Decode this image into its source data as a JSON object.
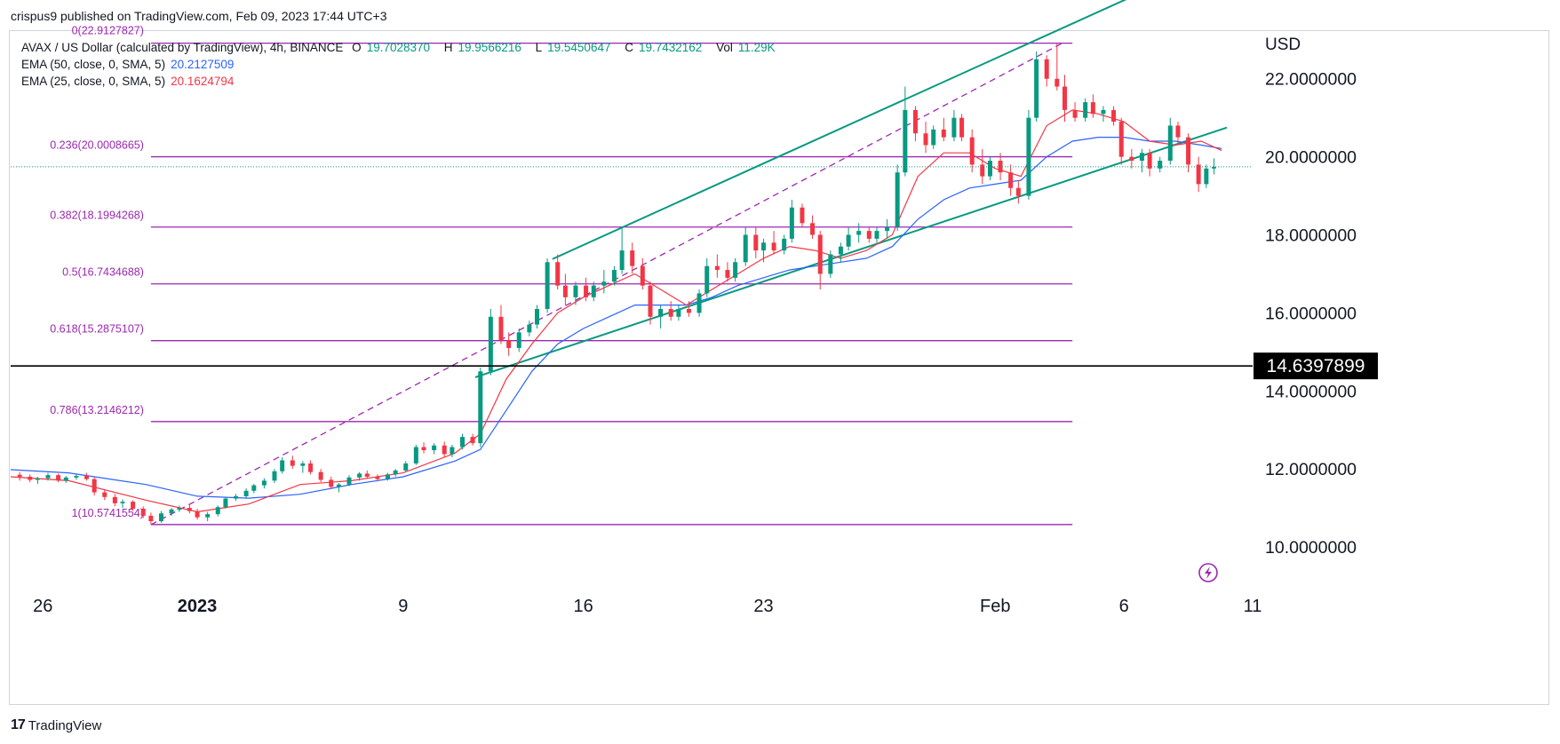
{
  "header": {
    "publisher": "crispus9 published on TradingView.com, Feb 09, 2023 17:44 UTC+3"
  },
  "legend": {
    "symbol": "AVAX / US Dollar (calculated by TradingView), 4h, BINANCE",
    "o_label": "O",
    "o_value": "19.7028370",
    "h_label": "H",
    "h_value": "19.9566216",
    "l_label": "L",
    "l_value": "19.5450647",
    "c_label": "C",
    "c_value": "19.7432162",
    "vol_label": "Vol",
    "vol_value": "11.29K",
    "ema50_label": "EMA (50, close, 0, SMA, 5)",
    "ema50_value": "20.2127509",
    "ema25_label": "EMA (25, close, 0, SMA, 5)",
    "ema25_value": "20.1624794"
  },
  "footer": {
    "brand": "TradingView"
  },
  "colors": {
    "up": "#089981",
    "down": "#f23645",
    "ema50": "#2962ff",
    "ema25": "#f23645",
    "fib": "#9c27b0",
    "channel": "#089981",
    "price_line": "#000000",
    "last_price": "#787b86"
  },
  "chart_data": {
    "type": "candlestick",
    "symbol": "AVAX/USD",
    "timeframe": "4h",
    "y_axis_label": "USD",
    "ylim": [
      9.0,
      23.2
    ],
    "y_ticks": [
      "22.0000000",
      "20.0000000",
      "18.0000000",
      "16.0000000",
      "14.0000000",
      "12.0000000",
      "10.0000000"
    ],
    "y_tick_values": [
      22,
      20,
      18,
      16,
      14,
      12,
      10
    ],
    "x_ticks": [
      "26",
      "2023",
      "9",
      "16",
      "23",
      "Feb",
      "6",
      "11"
    ],
    "x_tick_days": [
      -6,
      0,
      8,
      15,
      22,
      31,
      36,
      41
    ],
    "x_range_days": [
      -7.25,
      41
    ],
    "horizontal_line": {
      "value": 14.6397899,
      "label": "14.6397899"
    },
    "last_price": 19.7432162,
    "fibonacci": {
      "start_day": -1.8,
      "end_day": 34,
      "levels": [
        {
          "label": "0(22.9127827)",
          "value": 22.9127827
        },
        {
          "label": "0.236(20.0008665)",
          "value": 20.0008665
        },
        {
          "label": "0.382(18.1994268)",
          "value": 18.1994268
        },
        {
          "label": "0.5(16.7434688)",
          "value": 16.7434688
        },
        {
          "label": "0.618(15.2875107)",
          "value": 15.2875107
        },
        {
          "label": "0.786(13.2146212)",
          "value": 13.2146212
        },
        {
          "label": "1(10.5741554)",
          "value": 10.5741554
        }
      ],
      "trend": [
        [
          -1.8,
          10.57
        ],
        [
          33.6,
          22.91
        ]
      ]
    },
    "channel": {
      "lower": [
        [
          10.8,
          14.35
        ],
        [
          40.0,
          20.75
        ]
      ],
      "upper": [
        [
          13.8,
          17.38
        ],
        [
          37.8,
          24.55
        ]
      ]
    },
    "candles": [
      [
        -6.9,
        11.85,
        11.92,
        11.7,
        11.8
      ],
      [
        -6.5,
        11.8,
        11.86,
        11.66,
        11.72
      ],
      [
        -6.2,
        11.72,
        11.8,
        11.62,
        11.76
      ],
      [
        -5.8,
        11.76,
        11.9,
        11.7,
        11.84
      ],
      [
        -5.4,
        11.84,
        11.88,
        11.66,
        11.7
      ],
      [
        -5.1,
        11.7,
        11.82,
        11.64,
        11.78
      ],
      [
        -4.7,
        11.78,
        11.86,
        11.72,
        11.82
      ],
      [
        -4.3,
        11.82,
        11.9,
        11.7,
        11.74
      ],
      [
        -4.0,
        11.74,
        11.8,
        11.32,
        11.4
      ],
      [
        -3.6,
        11.4,
        11.48,
        11.2,
        11.28
      ],
      [
        -3.2,
        11.28,
        11.36,
        11.04,
        11.12
      ],
      [
        -2.9,
        11.12,
        11.22,
        11.0,
        11.16
      ],
      [
        -2.5,
        11.16,
        11.2,
        10.92,
        10.98
      ],
      [
        -2.1,
        10.98,
        11.04,
        10.74,
        10.8
      ],
      [
        -1.8,
        10.8,
        10.88,
        10.58,
        10.66
      ],
      [
        -1.4,
        10.66,
        10.92,
        10.62,
        10.86
      ],
      [
        -1.0,
        10.86,
        11.0,
        10.8,
        10.96
      ],
      [
        -0.7,
        10.96,
        11.06,
        10.9,
        11.0
      ],
      [
        -0.3,
        11.0,
        11.08,
        10.86,
        10.92
      ],
      [
        0.0,
        10.92,
        10.98,
        10.7,
        10.76
      ],
      [
        0.4,
        10.76,
        10.9,
        10.66,
        10.84
      ],
      [
        0.8,
        10.84,
        11.06,
        10.78,
        11.02
      ],
      [
        1.1,
        11.02,
        11.28,
        10.98,
        11.24
      ],
      [
        1.5,
        11.24,
        11.36,
        11.18,
        11.3
      ],
      [
        1.9,
        11.3,
        11.5,
        11.24,
        11.44
      ],
      [
        2.2,
        11.44,
        11.62,
        11.38,
        11.58
      ],
      [
        2.6,
        11.58,
        11.76,
        11.5,
        11.7
      ],
      [
        3.0,
        11.7,
        12.0,
        11.64,
        11.94
      ],
      [
        3.3,
        11.94,
        12.3,
        11.88,
        12.22
      ],
      [
        3.7,
        12.22,
        12.34,
        12.0,
        12.08
      ],
      [
        4.1,
        12.08,
        12.2,
        11.9,
        12.14
      ],
      [
        4.4,
        12.14,
        12.22,
        11.86,
        11.92
      ],
      [
        4.8,
        11.92,
        12.0,
        11.66,
        11.72
      ],
      [
        5.2,
        11.72,
        11.8,
        11.48,
        11.54
      ],
      [
        5.5,
        11.54,
        11.64,
        11.4,
        11.6
      ],
      [
        5.9,
        11.6,
        11.84,
        11.56,
        11.78
      ],
      [
        6.3,
        11.78,
        11.92,
        11.7,
        11.88
      ],
      [
        6.6,
        11.88,
        11.96,
        11.76,
        11.8
      ],
      [
        7.0,
        11.8,
        11.86,
        11.68,
        11.74
      ],
      [
        7.4,
        11.74,
        11.9,
        11.7,
        11.86
      ],
      [
        7.7,
        11.86,
        12.0,
        11.8,
        11.96
      ],
      [
        8.1,
        11.96,
        12.2,
        11.92,
        12.14
      ],
      [
        8.5,
        12.14,
        12.62,
        12.1,
        12.56
      ],
      [
        8.8,
        12.56,
        12.68,
        12.4,
        12.48
      ],
      [
        9.2,
        12.48,
        12.66,
        12.38,
        12.6
      ],
      [
        9.6,
        12.6,
        12.7,
        12.3,
        12.38
      ],
      [
        9.9,
        12.38,
        12.62,
        12.3,
        12.56
      ],
      [
        10.3,
        12.56,
        12.9,
        12.5,
        12.82
      ],
      [
        10.7,
        12.82,
        12.9,
        12.6,
        12.66
      ],
      [
        11.0,
        12.66,
        14.6,
        12.56,
        14.5
      ],
      [
        11.4,
        14.5,
        16.1,
        14.4,
        15.9
      ],
      [
        11.8,
        15.9,
        16.2,
        15.2,
        15.3
      ],
      [
        12.1,
        15.3,
        15.5,
        14.9,
        15.1
      ],
      [
        12.5,
        15.1,
        15.6,
        15.0,
        15.5
      ],
      [
        12.9,
        15.5,
        15.8,
        15.4,
        15.7
      ],
      [
        13.2,
        15.7,
        16.2,
        15.6,
        16.1
      ],
      [
        13.6,
        16.1,
        17.4,
        16.0,
        17.3
      ],
      [
        14.0,
        17.3,
        17.5,
        16.6,
        16.7
      ],
      [
        14.3,
        16.7,
        17.0,
        16.2,
        16.4
      ],
      [
        14.7,
        16.4,
        16.8,
        16.2,
        16.7
      ],
      [
        15.1,
        16.7,
        16.9,
        16.3,
        16.4
      ],
      [
        15.4,
        16.4,
        16.8,
        16.3,
        16.7
      ],
      [
        15.8,
        16.7,
        17.1,
        16.5,
        16.8
      ],
      [
        16.2,
        16.8,
        17.2,
        16.7,
        17.1
      ],
      [
        16.5,
        17.1,
        18.2,
        17.0,
        17.6
      ],
      [
        16.9,
        17.6,
        17.8,
        17.0,
        17.2
      ],
      [
        17.3,
        17.2,
        17.4,
        16.6,
        16.7
      ],
      [
        17.6,
        16.7,
        16.8,
        15.7,
        15.9
      ],
      [
        18.0,
        15.9,
        16.2,
        15.6,
        16.1
      ],
      [
        18.4,
        16.1,
        16.3,
        15.8,
        15.9
      ],
      [
        18.7,
        15.9,
        16.2,
        15.8,
        16.1
      ],
      [
        19.1,
        16.1,
        16.3,
        15.9,
        16.0
      ],
      [
        19.5,
        16.0,
        16.6,
        15.9,
        16.5
      ],
      [
        19.8,
        16.5,
        17.4,
        16.4,
        17.2
      ],
      [
        20.2,
        17.2,
        17.5,
        16.9,
        17.1
      ],
      [
        20.6,
        17.1,
        17.3,
        16.8,
        16.9
      ],
      [
        20.9,
        16.9,
        17.4,
        16.8,
        17.3
      ],
      [
        21.3,
        17.3,
        18.2,
        17.2,
        18.0
      ],
      [
        21.7,
        18.0,
        18.2,
        17.4,
        17.6
      ],
      [
        22.0,
        17.6,
        17.9,
        17.3,
        17.8
      ],
      [
        22.4,
        17.8,
        18.1,
        17.5,
        17.6
      ],
      [
        22.8,
        17.6,
        18.0,
        17.5,
        17.9
      ],
      [
        23.1,
        17.9,
        18.9,
        17.8,
        18.7
      ],
      [
        23.5,
        18.7,
        18.8,
        18.2,
        18.3
      ],
      [
        23.9,
        18.3,
        18.5,
        17.9,
        18.0
      ],
      [
        24.2,
        18.0,
        18.1,
        16.6,
        17.0
      ],
      [
        24.6,
        17.0,
        17.6,
        16.9,
        17.5
      ],
      [
        25.0,
        17.5,
        17.8,
        17.3,
        17.7
      ],
      [
        25.3,
        17.7,
        18.2,
        17.6,
        18.0
      ],
      [
        25.7,
        18.0,
        18.3,
        17.8,
        18.1
      ],
      [
        26.1,
        18.1,
        18.2,
        17.8,
        17.9
      ],
      [
        26.4,
        17.9,
        18.2,
        17.8,
        18.1
      ],
      [
        26.8,
        18.1,
        18.4,
        17.9,
        18.2
      ],
      [
        27.2,
        18.2,
        19.8,
        18.1,
        19.6
      ],
      [
        27.5,
        19.6,
        21.8,
        19.5,
        21.2
      ],
      [
        27.9,
        21.2,
        21.3,
        20.4,
        20.6
      ],
      [
        28.3,
        20.6,
        20.9,
        20.1,
        20.3
      ],
      [
        28.6,
        20.3,
        20.8,
        20.2,
        20.7
      ],
      [
        29.0,
        20.7,
        21.0,
        20.4,
        20.5
      ],
      [
        29.4,
        20.5,
        21.2,
        20.4,
        21.0
      ],
      [
        29.7,
        21.0,
        21.1,
        20.4,
        20.5
      ],
      [
        30.1,
        20.5,
        20.7,
        19.6,
        19.8
      ],
      [
        30.5,
        19.8,
        20.2,
        19.3,
        19.5
      ],
      [
        30.8,
        19.5,
        20.0,
        19.4,
        19.9
      ],
      [
        31.2,
        19.9,
        20.1,
        19.4,
        19.6
      ],
      [
        31.6,
        19.6,
        19.8,
        19.0,
        19.2
      ],
      [
        31.9,
        19.2,
        19.4,
        18.8,
        19.0
      ],
      [
        32.3,
        19.0,
        21.2,
        18.9,
        21.0
      ],
      [
        32.6,
        21.0,
        22.7,
        20.9,
        22.5
      ],
      [
        33.0,
        22.5,
        22.6,
        21.8,
        22.0
      ],
      [
        33.4,
        22.0,
        22.9,
        21.7,
        21.8
      ],
      [
        33.7,
        21.8,
        22.1,
        20.9,
        21.2
      ],
      [
        34.1,
        21.2,
        21.4,
        20.9,
        21.0
      ],
      [
        34.5,
        21.0,
        21.5,
        20.9,
        21.4
      ],
      [
        34.8,
        21.4,
        21.6,
        21.0,
        21.1
      ],
      [
        35.2,
        21.1,
        21.3,
        20.9,
        21.2
      ],
      [
        35.6,
        21.2,
        21.3,
        20.8,
        20.9
      ],
      [
        35.9,
        20.9,
        21.0,
        19.8,
        20.0
      ],
      [
        36.3,
        20.0,
        20.2,
        19.7,
        19.9
      ],
      [
        36.7,
        19.9,
        20.2,
        19.6,
        20.1
      ],
      [
        37.0,
        20.1,
        20.2,
        19.5,
        19.7
      ],
      [
        37.4,
        19.7,
        20.0,
        19.6,
        19.9
      ],
      [
        37.8,
        19.9,
        21.0,
        19.8,
        20.8
      ],
      [
        38.1,
        20.8,
        20.9,
        20.3,
        20.5
      ],
      [
        38.5,
        20.5,
        20.6,
        19.6,
        19.8
      ],
      [
        38.9,
        19.8,
        20.0,
        19.1,
        19.3
      ],
      [
        39.2,
        19.3,
        19.8,
        19.2,
        19.7
      ],
      [
        39.5,
        19.7,
        19.96,
        19.55,
        19.74
      ]
    ],
    "ema50": [
      [
        -7.25,
        11.98
      ],
      [
        -5,
        11.9
      ],
      [
        -2,
        11.6
      ],
      [
        0,
        11.3
      ],
      [
        2,
        11.25
      ],
      [
        4,
        11.35
      ],
      [
        6,
        11.6
      ],
      [
        8,
        11.8
      ],
      [
        10,
        12.2
      ],
      [
        11,
        12.5
      ],
      [
        12,
        13.5
      ],
      [
        13,
        14.5
      ],
      [
        14,
        15.2
      ],
      [
        15,
        15.6
      ],
      [
        16,
        15.9
      ],
      [
        17,
        16.2
      ],
      [
        18,
        16.2
      ],
      [
        19,
        16.2
      ],
      [
        20,
        16.4
      ],
      [
        21,
        16.7
      ],
      [
        22,
        16.9
      ],
      [
        23,
        17.1
      ],
      [
        24,
        17.2
      ],
      [
        25,
        17.3
      ],
      [
        26,
        17.4
      ],
      [
        27,
        17.7
      ],
      [
        28,
        18.4
      ],
      [
        29,
        18.9
      ],
      [
        30,
        19.2
      ],
      [
        31,
        19.3
      ],
      [
        32,
        19.4
      ],
      [
        33,
        20.0
      ],
      [
        34,
        20.4
      ],
      [
        35,
        20.5
      ],
      [
        36,
        20.5
      ],
      [
        37,
        20.4
      ],
      [
        38,
        20.4
      ],
      [
        39,
        20.3
      ],
      [
        39.8,
        20.21
      ]
    ],
    "ema25": [
      [
        -7.25,
        11.8
      ],
      [
        -5,
        11.7
      ],
      [
        -2,
        11.2
      ],
      [
        0,
        10.9
      ],
      [
        2,
        11.1
      ],
      [
        4,
        11.6
      ],
      [
        6,
        11.7
      ],
      [
        8,
        11.9
      ],
      [
        10,
        12.4
      ],
      [
        11,
        12.9
      ],
      [
        12,
        14.3
      ],
      [
        13,
        15.2
      ],
      [
        14,
        16.0
      ],
      [
        15,
        16.4
      ],
      [
        16,
        16.7
      ],
      [
        17,
        17.0
      ],
      [
        18,
        16.6
      ],
      [
        19,
        16.2
      ],
      [
        20,
        16.6
      ],
      [
        21,
        17.0
      ],
      [
        22,
        17.4
      ],
      [
        23,
        17.7
      ],
      [
        24,
        17.6
      ],
      [
        25,
        17.4
      ],
      [
        26,
        17.6
      ],
      [
        27,
        18.0
      ],
      [
        28,
        19.5
      ],
      [
        29,
        20.1
      ],
      [
        30,
        20.1
      ],
      [
        31,
        19.7
      ],
      [
        32,
        19.5
      ],
      [
        33,
        20.8
      ],
      [
        34,
        21.2
      ],
      [
        35,
        21.1
      ],
      [
        36,
        20.9
      ],
      [
        37,
        20.4
      ],
      [
        38,
        20.3
      ],
      [
        39,
        20.4
      ],
      [
        39.8,
        20.16
      ]
    ]
  }
}
